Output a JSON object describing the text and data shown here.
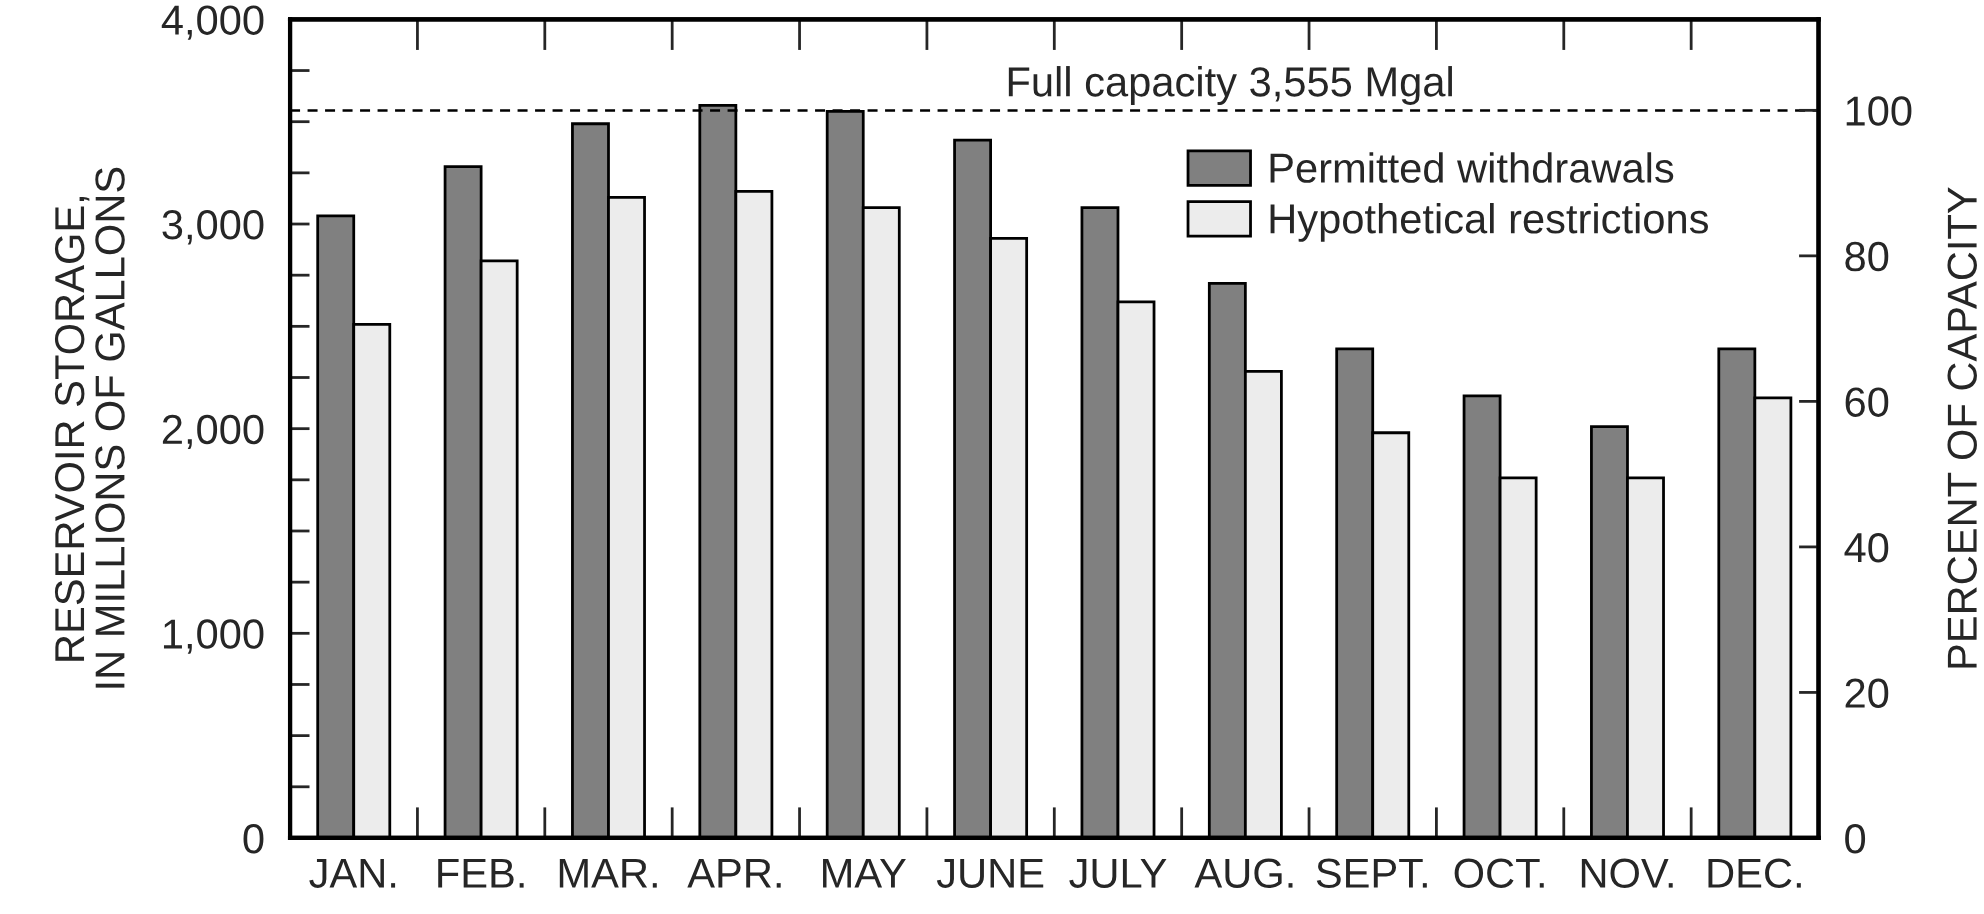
{
  "chart_data": {
    "type": "bar",
    "ylabel": "RESERVOIR STORAGE,\nIN MILLIONS OF GALLONS",
    "y2label": "PERCENT OF CAPACITY",
    "categories": [
      "JAN.",
      "FEB.",
      "MAR.",
      "APR.",
      "MAY",
      "JUNE",
      "JULY",
      "AUG.",
      "SEPT.",
      "OCT.",
      "NOV.",
      "DEC."
    ],
    "series": [
      {
        "name": "Permitted withdrawals",
        "color": "#808080",
        "values": [
          3040,
          3280,
          3490,
          3580,
          3550,
          3410,
          3080,
          2710,
          2390,
          2160,
          2010,
          2390
        ]
      },
      {
        "name": "Hypothetical restrictions",
        "color": "#ececec",
        "values": [
          2510,
          2820,
          3130,
          3160,
          3080,
          2930,
          2620,
          2280,
          1980,
          1760,
          1760,
          2150
        ]
      }
    ],
    "ylim": [
      0,
      4000
    ],
    "yticks": [
      0,
      {
        "value": 250,
        "label": null
      },
      {
        "value": 500,
        "label": null
      },
      {
        "value": 750,
        "label": null
      },
      {
        "value": 1000,
        "label": "1,000"
      },
      {
        "value": 1250,
        "label": null
      },
      {
        "value": 1500,
        "label": null
      },
      {
        "value": 1750,
        "label": null
      },
      {
        "value": 2000,
        "label": "2,000"
      },
      {
        "value": 2250,
        "label": null
      },
      {
        "value": 2500,
        "label": null
      },
      {
        "value": 2750,
        "label": null
      },
      {
        "value": 3000,
        "label": "3,000"
      },
      {
        "value": 3250,
        "label": null
      },
      {
        "value": 3500,
        "label": null
      },
      {
        "value": 3750,
        "label": null
      },
      {
        "value": 4000,
        "label": "4,000"
      }
    ],
    "y2lim": [
      0,
      112.5
    ],
    "y2ticks": [
      0,
      20,
      40,
      60,
      80,
      100
    ],
    "ref_lines": [
      {
        "axis": "y",
        "value": 3555,
        "label": "Full capacity 3,555 Mgal",
        "line_style": "dashed",
        "color": "#000000"
      }
    ],
    "legend": "top right"
  }
}
